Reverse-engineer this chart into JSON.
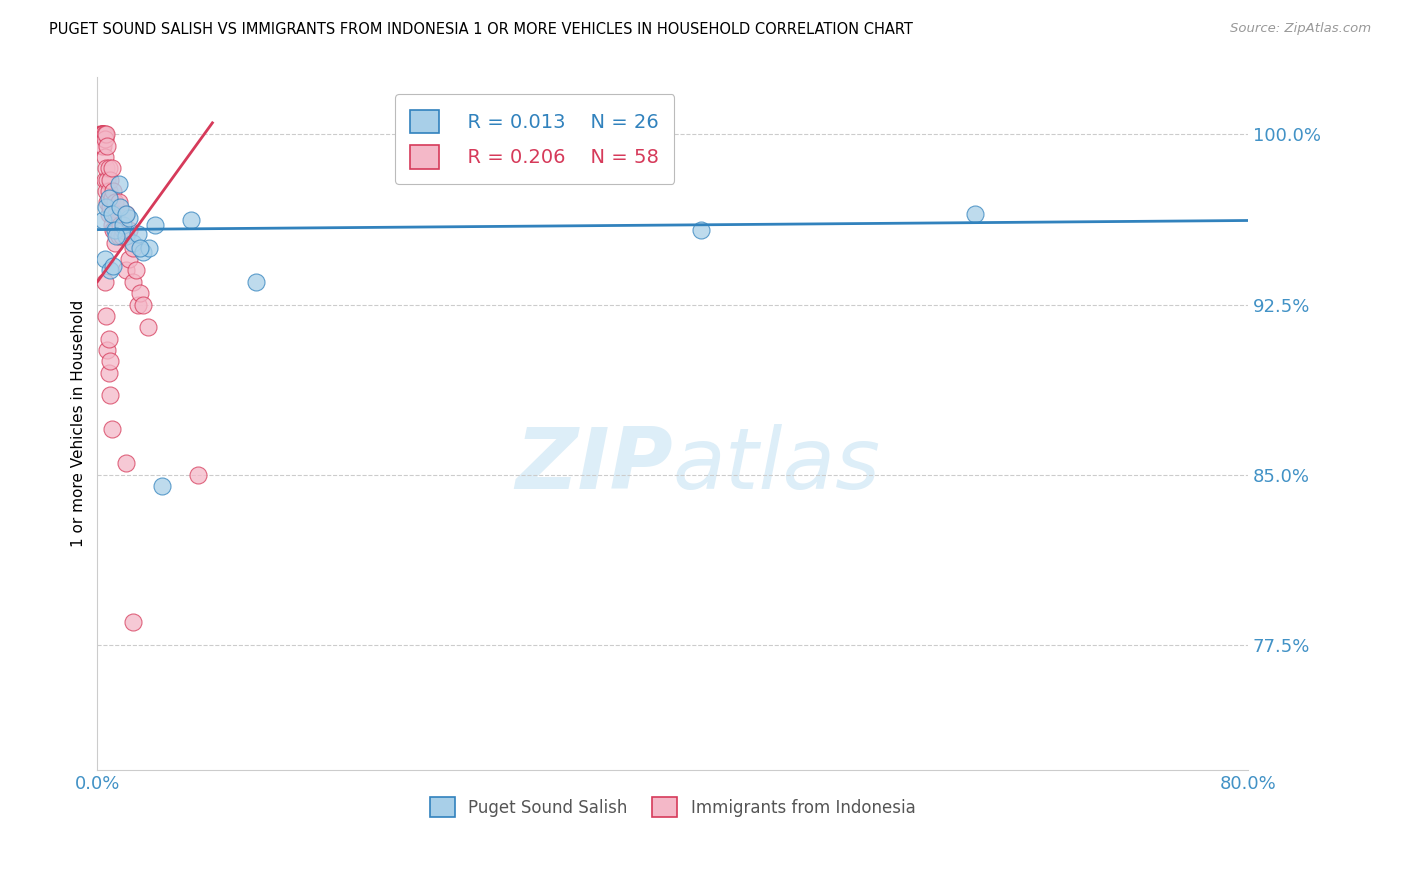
{
  "title": "PUGET SOUND SALISH VS IMMIGRANTS FROM INDONESIA 1 OR MORE VEHICLES IN HOUSEHOLD CORRELATION CHART",
  "source": "Source: ZipAtlas.com",
  "ylabel": "1 or more Vehicles in Household",
  "xlim": [
    0.0,
    80.0
  ],
  "ylim": [
    72.0,
    102.5
  ],
  "yticks": [
    77.5,
    85.0,
    92.5,
    100.0
  ],
  "ytick_labels": [
    "77.5%",
    "85.0%",
    "92.5%",
    "100.0%"
  ],
  "xticks": [
    0.0,
    10.0,
    20.0,
    30.0,
    40.0,
    50.0,
    60.0,
    70.0,
    80.0
  ],
  "xtick_labels": [
    "0.0%",
    "",
    "",
    "",
    "",
    "",
    "",
    "",
    "80.0%"
  ],
  "legend_blue_r": "R = 0.013",
  "legend_blue_n": "N = 26",
  "legend_pink_r": "R = 0.206",
  "legend_pink_n": "N = 58",
  "blue_color": "#a8cfe8",
  "pink_color": "#f4b8c8",
  "blue_line_color": "#3182bd",
  "pink_line_color": "#d63a5a",
  "axis_color": "#4292c6",
  "grid_color": "#cccccc",
  "watermark_color": "#ddeef8",
  "blue_dots_x": [
    0.4,
    0.6,
    0.8,
    1.0,
    1.2,
    1.5,
    1.8,
    2.0,
    2.2,
    2.5,
    2.8,
    3.2,
    3.6,
    4.0,
    0.5,
    0.9,
    1.3,
    1.6,
    2.0,
    3.0,
    4.5,
    6.5,
    11.0,
    42.0,
    61.0,
    1.1
  ],
  "blue_dots_y": [
    96.2,
    96.8,
    97.2,
    96.5,
    95.8,
    97.8,
    96.0,
    95.5,
    96.3,
    95.2,
    95.6,
    94.8,
    95.0,
    96.0,
    94.5,
    94.0,
    95.5,
    96.8,
    96.5,
    95.0,
    84.5,
    96.2,
    93.5,
    95.8,
    96.5,
    94.2
  ],
  "blue_line_x0": 0.0,
  "blue_line_x1": 80.0,
  "blue_line_y0": 95.8,
  "blue_line_y1": 96.2,
  "pink_dots_x": [
    0.2,
    0.3,
    0.3,
    0.3,
    0.3,
    0.4,
    0.4,
    0.4,
    0.5,
    0.5,
    0.5,
    0.5,
    0.6,
    0.6,
    0.6,
    0.7,
    0.7,
    0.7,
    0.8,
    0.8,
    0.8,
    0.9,
    0.9,
    1.0,
    1.0,
    1.0,
    1.1,
    1.1,
    1.2,
    1.2,
    1.3,
    1.5,
    1.5,
    1.6,
    1.7,
    1.8,
    2.0,
    2.0,
    2.2,
    2.2,
    2.5,
    2.5,
    2.7,
    2.8,
    3.0,
    3.2,
    3.5,
    0.5,
    0.6,
    0.7,
    0.8,
    0.8,
    0.9,
    0.9,
    1.0,
    2.0,
    7.0,
    2.5
  ],
  "pink_dots_y": [
    100.0,
    100.0,
    100.0,
    100.0,
    99.5,
    100.0,
    100.0,
    99.5,
    100.0,
    99.8,
    99.0,
    98.0,
    100.0,
    98.5,
    97.5,
    99.5,
    98.0,
    97.0,
    98.5,
    97.5,
    96.5,
    98.0,
    96.8,
    98.5,
    97.2,
    96.0,
    97.5,
    95.8,
    97.0,
    95.2,
    96.5,
    97.0,
    95.5,
    96.0,
    95.5,
    95.8,
    96.5,
    94.0,
    95.8,
    94.5,
    95.0,
    93.5,
    94.0,
    92.5,
    93.0,
    92.5,
    91.5,
    93.5,
    92.0,
    90.5,
    91.0,
    89.5,
    90.0,
    88.5,
    87.0,
    85.5,
    85.0,
    78.5
  ],
  "pink_line_x0": 0.0,
  "pink_line_x1": 8.0,
  "pink_line_y0": 93.5,
  "pink_line_y1": 100.5
}
